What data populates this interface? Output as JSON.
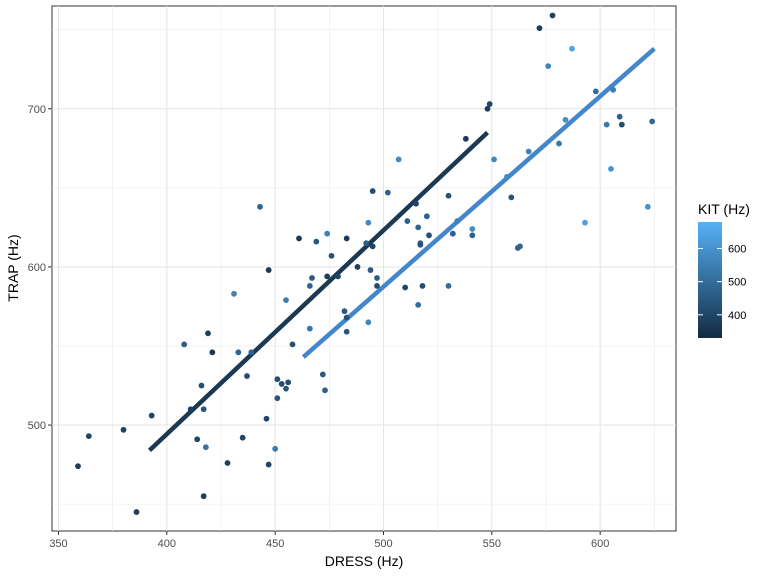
{
  "chart_data": {
    "type": "scatter",
    "title": "",
    "xlabel": "DRESS (Hz)",
    "ylabel": "TRAP (Hz)",
    "xlim": [
      347,
      635
    ],
    "ylim": [
      433,
      765
    ],
    "x_ticks": [
      350,
      400,
      450,
      500,
      550,
      600
    ],
    "y_ticks": [
      500,
      600,
      700
    ],
    "grid": true,
    "legend": {
      "title": "KIT (Hz)",
      "placement": "right",
      "type": "colorbar",
      "range": [
        330,
        680
      ],
      "ticks": [
        400,
        500,
        600
      ],
      "color_low": "#132B43",
      "color_high": "#56B1F7"
    },
    "points": [
      {
        "x": 359,
        "y": 474,
        "kit": 380
      },
      {
        "x": 364,
        "y": 493,
        "kit": 400
      },
      {
        "x": 380,
        "y": 497,
        "kit": 390
      },
      {
        "x": 386,
        "y": 445,
        "kit": 380
      },
      {
        "x": 393,
        "y": 506,
        "kit": 400
      },
      {
        "x": 408,
        "y": 551,
        "kit": 460
      },
      {
        "x": 411,
        "y": 510,
        "kit": 380
      },
      {
        "x": 414,
        "y": 491,
        "kit": 400
      },
      {
        "x": 416,
        "y": 525,
        "kit": 420
      },
      {
        "x": 417,
        "y": 455,
        "kit": 380
      },
      {
        "x": 418,
        "y": 486,
        "kit": 520
      },
      {
        "x": 417,
        "y": 510,
        "kit": 440
      },
      {
        "x": 419,
        "y": 558,
        "kit": 380
      },
      {
        "x": 421,
        "y": 546,
        "kit": 370
      },
      {
        "x": 428,
        "y": 476,
        "kit": 380
      },
      {
        "x": 431,
        "y": 583,
        "kit": 560
      },
      {
        "x": 433,
        "y": 546,
        "kit": 480
      },
      {
        "x": 435,
        "y": 492,
        "kit": 400
      },
      {
        "x": 437,
        "y": 531,
        "kit": 420
      },
      {
        "x": 439,
        "y": 546,
        "kit": 470
      },
      {
        "x": 443,
        "y": 638,
        "kit": 480
      },
      {
        "x": 446,
        "y": 504,
        "kit": 400
      },
      {
        "x": 447,
        "y": 475,
        "kit": 400
      },
      {
        "x": 447,
        "y": 598,
        "kit": 370
      },
      {
        "x": 450,
        "y": 485,
        "kit": 540
      },
      {
        "x": 451,
        "y": 517,
        "kit": 440
      },
      {
        "x": 451,
        "y": 529,
        "kit": 430
      },
      {
        "x": 453,
        "y": 526,
        "kit": 420
      },
      {
        "x": 455,
        "y": 523,
        "kit": 440
      },
      {
        "x": 456,
        "y": 527,
        "kit": 420
      },
      {
        "x": 455,
        "y": 579,
        "kit": 540
      },
      {
        "x": 458,
        "y": 551,
        "kit": 430
      },
      {
        "x": 461,
        "y": 618,
        "kit": 370
      },
      {
        "x": 466,
        "y": 588,
        "kit": 480
      },
      {
        "x": 467,
        "y": 593,
        "kit": 450
      },
      {
        "x": 466,
        "y": 561,
        "kit": 520
      },
      {
        "x": 469,
        "y": 616,
        "kit": 440
      },
      {
        "x": 472,
        "y": 532,
        "kit": 450
      },
      {
        "x": 473,
        "y": 522,
        "kit": 470
      },
      {
        "x": 474,
        "y": 621,
        "kit": 560
      },
      {
        "x": 474,
        "y": 594,
        "kit": 380
      },
      {
        "x": 476,
        "y": 607,
        "kit": 440
      },
      {
        "x": 479,
        "y": 594,
        "kit": 400
      },
      {
        "x": 482,
        "y": 572,
        "kit": 450
      },
      {
        "x": 483,
        "y": 568,
        "kit": 430
      },
      {
        "x": 483,
        "y": 559,
        "kit": 440
      },
      {
        "x": 483,
        "y": 618,
        "kit": 370
      },
      {
        "x": 488,
        "y": 600,
        "kit": 380
      },
      {
        "x": 492,
        "y": 615,
        "kit": 470
      },
      {
        "x": 493,
        "y": 628,
        "kit": 580
      },
      {
        "x": 493,
        "y": 565,
        "kit": 570
      },
      {
        "x": 494,
        "y": 598,
        "kit": 450
      },
      {
        "x": 495,
        "y": 648,
        "kit": 420
      },
      {
        "x": 495,
        "y": 613,
        "kit": 400
      },
      {
        "x": 497,
        "y": 593,
        "kit": 460
      },
      {
        "x": 497,
        "y": 588,
        "kit": 420
      },
      {
        "x": 502,
        "y": 647,
        "kit": 470
      },
      {
        "x": 507,
        "y": 668,
        "kit": 580
      },
      {
        "x": 510,
        "y": 587,
        "kit": 400
      },
      {
        "x": 511,
        "y": 629,
        "kit": 470
      },
      {
        "x": 515,
        "y": 640,
        "kit": 400
      },
      {
        "x": 516,
        "y": 625,
        "kit": 480
      },
      {
        "x": 516,
        "y": 576,
        "kit": 500
      },
      {
        "x": 517,
        "y": 615,
        "kit": 480
      },
      {
        "x": 517,
        "y": 614,
        "kit": 440
      },
      {
        "x": 518,
        "y": 588,
        "kit": 420
      },
      {
        "x": 520,
        "y": 632,
        "kit": 470
      },
      {
        "x": 521,
        "y": 620,
        "kit": 430
      },
      {
        "x": 530,
        "y": 645,
        "kit": 430
      },
      {
        "x": 530,
        "y": 588,
        "kit": 500
      },
      {
        "x": 532,
        "y": 621,
        "kit": 470
      },
      {
        "x": 534,
        "y": 629,
        "kit": 560
      },
      {
        "x": 538,
        "y": 681,
        "kit": 370
      },
      {
        "x": 541,
        "y": 624,
        "kit": 580
      },
      {
        "x": 541,
        "y": 620,
        "kit": 470
      },
      {
        "x": 548,
        "y": 700,
        "kit": 380
      },
      {
        "x": 549,
        "y": 703,
        "kit": 400
      },
      {
        "x": 551,
        "y": 668,
        "kit": 570
      },
      {
        "x": 557,
        "y": 657,
        "kit": 580
      },
      {
        "x": 559,
        "y": 644,
        "kit": 440
      },
      {
        "x": 562,
        "y": 612,
        "kit": 470
      },
      {
        "x": 563,
        "y": 613,
        "kit": 480
      },
      {
        "x": 567,
        "y": 673,
        "kit": 560
      },
      {
        "x": 572,
        "y": 751,
        "kit": 380
      },
      {
        "x": 576,
        "y": 727,
        "kit": 560
      },
      {
        "x": 578,
        "y": 759,
        "kit": 390
      },
      {
        "x": 581,
        "y": 678,
        "kit": 530
      },
      {
        "x": 584,
        "y": 693,
        "kit": 590
      },
      {
        "x": 587,
        "y": 738,
        "kit": 650
      },
      {
        "x": 593,
        "y": 628,
        "kit": 640
      },
      {
        "x": 598,
        "y": 711,
        "kit": 500
      },
      {
        "x": 603,
        "y": 690,
        "kit": 530
      },
      {
        "x": 605,
        "y": 662,
        "kit": 600
      },
      {
        "x": 606,
        "y": 712,
        "kit": 550
      },
      {
        "x": 609,
        "y": 695,
        "kit": 470
      },
      {
        "x": 610,
        "y": 690,
        "kit": 420
      },
      {
        "x": 622,
        "y": 638,
        "kit": 600
      },
      {
        "x": 624,
        "y": 692,
        "kit": 490
      }
    ],
    "fit_lines": [
      {
        "x": [
          392,
          548
        ],
        "y": [
          484,
          685
        ],
        "color": "#1b3952"
      },
      {
        "x": [
          463,
          625
        ],
        "y": [
          543,
          738
        ],
        "color": "#4386cc"
      }
    ]
  }
}
